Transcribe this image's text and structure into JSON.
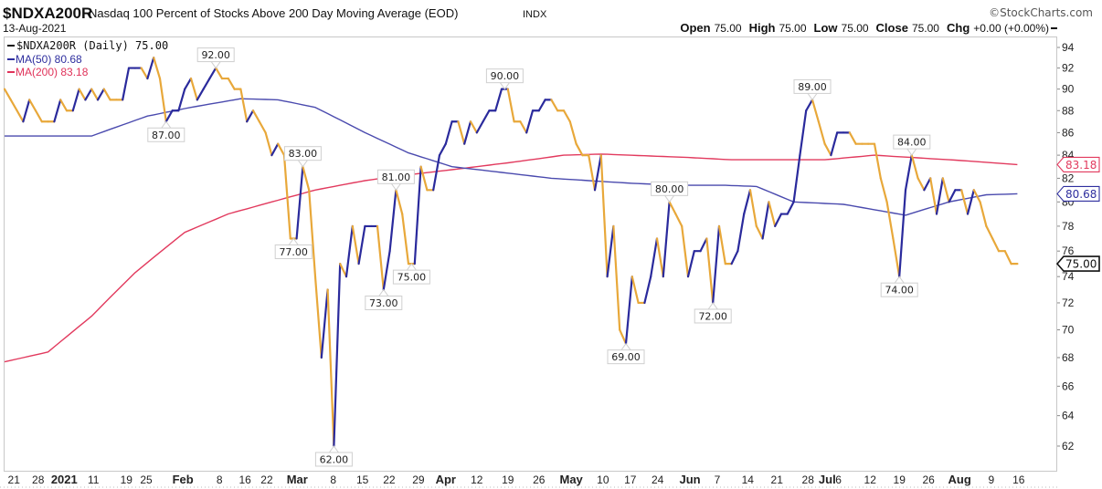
{
  "header": {
    "symbol": "$NDXA200R",
    "description": "Nasdaq 100 Percent of Stocks Above 200 Day Moving Average (EOD)",
    "exchange": "INDX",
    "date": "13-Aug-2021",
    "copyright": "©StockCharts.com",
    "open_label": "Open",
    "open": "75.00",
    "high_label": "High",
    "high": "75.00",
    "low_label": "Low",
    "low": "75.00",
    "close_label": "Close",
    "close": "75.00",
    "chg_label": "Chg",
    "chg": "+0.00 (+0.00%)"
  },
  "legend": [
    {
      "label": "$NDXA200R (Daily) 75.00",
      "color": "#111111"
    },
    {
      "label": "MA(50) 80.68",
      "color": "#2e2e9e"
    },
    {
      "label": "MA(200) 83.18",
      "color": "#e0335a"
    }
  ],
  "colors": {
    "up": "#2a2a9c",
    "down": "#e8a83a",
    "ma50": "#4a4aae",
    "ma200": "#e23a5e"
  },
  "chart_data": {
    "type": "line",
    "title": "$NDXA200R Nasdaq 100 Percent of Stocks Above 200 Day Moving Average (EOD)",
    "xlabel": "",
    "ylabel": "",
    "yscale": "log",
    "ylim": [
      61,
      95
    ],
    "x_unit": "trading-day index",
    "series": [
      {
        "name": "$NDXA200R",
        "values": [
          90,
          89,
          88,
          87,
          89,
          88,
          87,
          87,
          87,
          89,
          88,
          88,
          90,
          89,
          90,
          89,
          90,
          89,
          89,
          89,
          92,
          92,
          92,
          91,
          93,
          91,
          87,
          88,
          88,
          90,
          91,
          89,
          90,
          91,
          92,
          91,
          91,
          90,
          90,
          87,
          88,
          87,
          86,
          84,
          85,
          84,
          77,
          77,
          83,
          81,
          74,
          68,
          73,
          62,
          75,
          74,
          78,
          75,
          78,
          78,
          78,
          73,
          76,
          81,
          79,
          75,
          75,
          83,
          81,
          81,
          84,
          85,
          87,
          87,
          85,
          87,
          86,
          87,
          88,
          88,
          90,
          90,
          87,
          87,
          86,
          88,
          88,
          89,
          89,
          88,
          88,
          87,
          85,
          84,
          84,
          81,
          84,
          74,
          78,
          70,
          69,
          74,
          72,
          72,
          74,
          77,
          74,
          80,
          79,
          78,
          74,
          76,
          76,
          77,
          72,
          78,
          75,
          75,
          76,
          79,
          81,
          78,
          77,
          80,
          78,
          79,
          79,
          80,
          84,
          88,
          89,
          87,
          85,
          84,
          86,
          86,
          86,
          85,
          85,
          85,
          85,
          82,
          80,
          77,
          74,
          81,
          84,
          82,
          81,
          82,
          79,
          82,
          80,
          81,
          81,
          79,
          81,
          80,
          78,
          77,
          76,
          76,
          75,
          75
        ]
      },
      {
        "name": "MA(50)",
        "knots": [
          [
            0,
            85.7
          ],
          [
            14,
            85.7
          ],
          [
            23,
            87.5
          ],
          [
            30,
            88.3
          ],
          [
            38,
            89.1
          ],
          [
            44,
            89.0
          ],
          [
            50,
            88.3
          ],
          [
            58,
            86.0
          ],
          [
            65,
            84.2
          ],
          [
            72,
            83.0
          ],
          [
            80,
            82.5
          ],
          [
            88,
            82.0
          ],
          [
            100,
            81.6
          ],
          [
            108,
            81.4
          ],
          [
            116,
            81.4
          ],
          [
            121,
            81.3
          ],
          [
            127,
            80.0
          ],
          [
            135,
            79.8
          ],
          [
            145,
            78.9
          ],
          [
            152,
            80.0
          ],
          [
            158,
            80.6
          ],
          [
            163,
            80.68
          ]
        ]
      },
      {
        "name": "MA(200)",
        "knots": [
          [
            0,
            67.7
          ],
          [
            7,
            68.4
          ],
          [
            14,
            71.0
          ],
          [
            21,
            74.3
          ],
          [
            29,
            77.5
          ],
          [
            36,
            79.0
          ],
          [
            43,
            80.0
          ],
          [
            50,
            81.0
          ],
          [
            58,
            81.8
          ],
          [
            65,
            82.3
          ],
          [
            73,
            82.8
          ],
          [
            82,
            83.4
          ],
          [
            90,
            84.0
          ],
          [
            96,
            84.1
          ],
          [
            110,
            83.8
          ],
          [
            117,
            83.6
          ],
          [
            132,
            83.6
          ],
          [
            140,
            84.0
          ],
          [
            146,
            83.8
          ],
          [
            155,
            83.5
          ],
          [
            163,
            83.18
          ]
        ]
      }
    ],
    "yticks": [
      62,
      64,
      66,
      68,
      70,
      72,
      74,
      76,
      78,
      80,
      82,
      84,
      86,
      88,
      90,
      92,
      94
    ],
    "xticks": [
      {
        "label": "21",
        "i": 1.5
      },
      {
        "label": "28",
        "i": 5.4
      },
      {
        "label": "2021",
        "i": 9.6,
        "bold": true
      },
      {
        "label": "11",
        "i": 14.3
      },
      {
        "label": "19",
        "i": 19.6
      },
      {
        "label": "25",
        "i": 22.8
      },
      {
        "label": "Feb",
        "i": 28.7,
        "bold": true
      },
      {
        "label": "8",
        "i": 34.6
      },
      {
        "label": "16",
        "i": 38.7
      },
      {
        "label": "22",
        "i": 42.2
      },
      {
        "label": "Mar",
        "i": 47.1,
        "bold": true
      },
      {
        "label": "8",
        "i": 52.9
      },
      {
        "label": "15",
        "i": 57.6
      },
      {
        "label": "22",
        "i": 61.9
      },
      {
        "label": "29",
        "i": 66.6
      },
      {
        "label": "Apr",
        "i": 71.0,
        "bold": true
      },
      {
        "label": "12",
        "i": 76.0
      },
      {
        "label": "19",
        "i": 81.0
      },
      {
        "label": "26",
        "i": 86.0
      },
      {
        "label": "May",
        "i": 91.2,
        "bold": true
      },
      {
        "label": "10",
        "i": 96.3
      },
      {
        "label": "17",
        "i": 100.7
      },
      {
        "label": "24",
        "i": 105.1
      },
      {
        "label": "Jun",
        "i": 110.3,
        "bold": true
      },
      {
        "label": "7",
        "i": 114.7
      },
      {
        "label": "14",
        "i": 119.6
      },
      {
        "label": "21",
        "i": 124.3
      },
      {
        "label": "28",
        "i": 129.3
      },
      {
        "label": "Jul",
        "i": 132.4,
        "bold": true
      },
      {
        "label": "6",
        "i": 134.2
      },
      {
        "label": "12",
        "i": 139.3
      },
      {
        "label": "19",
        "i": 144.0
      },
      {
        "label": "26",
        "i": 148.7
      },
      {
        "label": "Aug",
        "i": 153.7,
        "bold": true
      },
      {
        "label": "9",
        "i": 158.8
      },
      {
        "label": "16",
        "i": 163.2
      }
    ],
    "annotations": [
      {
        "label": "92.00",
        "i": 34,
        "v": 92,
        "pos": "above"
      },
      {
        "label": "87.00",
        "i": 26,
        "v": 87,
        "pos": "below"
      },
      {
        "label": "83.00",
        "i": 48,
        "v": 83,
        "pos": "above"
      },
      {
        "label": "77.00",
        "i": 46.5,
        "v": 77,
        "pos": "below"
      },
      {
        "label": "62.00",
        "i": 53,
        "v": 62,
        "pos": "below"
      },
      {
        "label": "73.00",
        "i": 61,
        "v": 73,
        "pos": "below"
      },
      {
        "label": "81.00",
        "i": 63,
        "v": 81,
        "pos": "above"
      },
      {
        "label": "75.00",
        "i": 65.5,
        "v": 75,
        "pos": "below"
      },
      {
        "label": "90.00",
        "i": 80.5,
        "v": 90,
        "pos": "above"
      },
      {
        "label": "69.00",
        "i": 100,
        "v": 69,
        "pos": "below"
      },
      {
        "label": "80.00",
        "i": 107,
        "v": 80,
        "pos": "above"
      },
      {
        "label": "72.00",
        "i": 114,
        "v": 72,
        "pos": "below"
      },
      {
        "label": "89.00",
        "i": 130,
        "v": 89,
        "pos": "above"
      },
      {
        "label": "84.00",
        "i": 146,
        "v": 84,
        "pos": "above"
      },
      {
        "label": "74.00",
        "i": 144,
        "v": 74,
        "pos": "below"
      }
    ],
    "last_value_tags": [
      {
        "label": "83.18",
        "v": 83.18,
        "color": "#e23a5e",
        "bold": false
      },
      {
        "label": "80.68",
        "v": 80.68,
        "color": "#2e2e9e",
        "bold": false
      },
      {
        "label": "75.00",
        "v": 75,
        "color": "#111111",
        "bold": true
      }
    ],
    "legend_position": "top-left",
    "grid": false
  }
}
